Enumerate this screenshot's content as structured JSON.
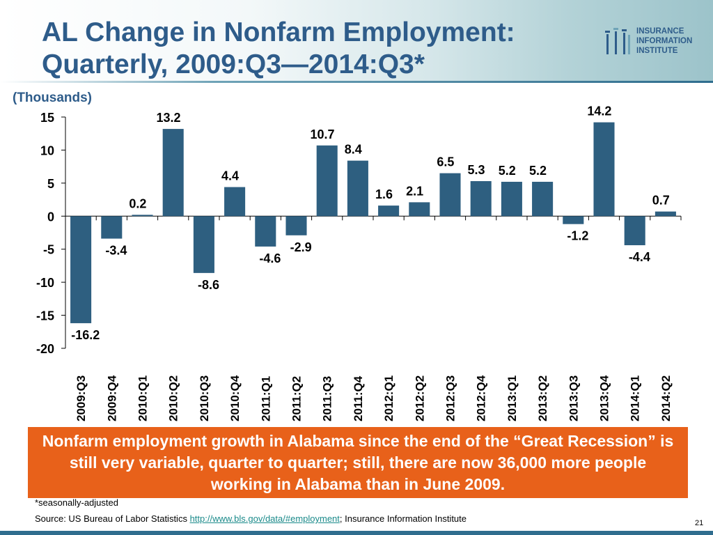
{
  "header": {
    "title_line1": "AL Change in Nonfarm Employment:",
    "title_line2": "Quarterly, 2009:Q3—2014:Q3*"
  },
  "logo": {
    "line1": "INSURANCE",
    "line2": "INFORMATION",
    "line3": "INSTITUTE",
    "icon": "iii-logo-icon"
  },
  "chart_data": {
    "type": "bar",
    "unit_label": "(Thousands)",
    "categories": [
      "2009:Q3",
      "2009:Q4",
      "2010:Q1",
      "2010:Q2",
      "2010:Q3",
      "2010:Q4",
      "2011:Q1",
      "2011:Q2",
      "2011:Q3",
      "2011:Q4",
      "2012:Q1",
      "2012:Q2",
      "2012:Q3",
      "2012:Q4",
      "2013:Q1",
      "2013:Q2",
      "2013:Q3",
      "2013:Q4",
      "2014:Q1",
      "2014:Q2"
    ],
    "values": [
      -16.2,
      -3.4,
      0.2,
      13.2,
      -8.6,
      4.4,
      -4.6,
      -2.9,
      10.7,
      8.4,
      1.6,
      2.1,
      6.5,
      5.3,
      5.2,
      5.2,
      -1.2,
      14.2,
      -4.4,
      0.7
    ],
    "value_labels": [
      "-16.2",
      "-3.4",
      "0.2",
      "13.2",
      "-8.6",
      "4.4",
      "-4.6",
      "-2.9",
      "10.7",
      "8.4",
      "1.6",
      "2.1",
      "6.5",
      "5.3",
      "5.2",
      "5.2",
      "-1.2",
      "14.2",
      "-4.4",
      "0.7"
    ],
    "ylim": [
      -20,
      15
    ],
    "yticks": [
      15,
      10,
      5,
      0,
      -5,
      -10,
      -15,
      -20
    ],
    "ytick_labels": [
      "15",
      "10",
      "5",
      "0",
      "-5",
      "-10",
      "-15",
      "-20"
    ],
    "bar_color": "#2e5f80",
    "grid": false
  },
  "callout": {
    "text": "Nonfarm employment growth in Alabama since the end of the “Great Recession” is still very variable, quarter to quarter; still, there are now 36,000 more people working in Alabama than in June 2009.",
    "background": "#e8611a"
  },
  "footer": {
    "footnote": "*seasonally-adjusted",
    "source_prefix": "Source: US Bureau of Labor Statistics ",
    "source_link": "http://www.bls.gov/data/#employment",
    "source_suffix": "; Insurance Information Institute",
    "page_number": "21"
  },
  "colors": {
    "title": "#2e5c8a",
    "accent_band": "#2f6d8e"
  }
}
